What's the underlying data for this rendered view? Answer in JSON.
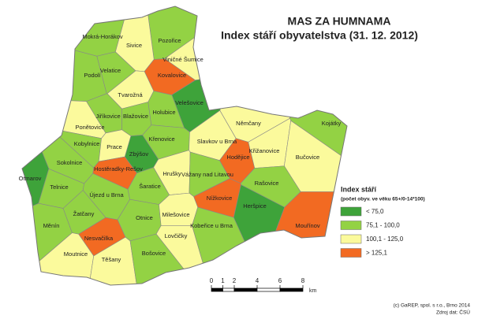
{
  "map": {
    "title": "MAS ZA HUMNAMA",
    "subtitle": "Index stáří obyvatelstva (31. 12. 2012)",
    "legend": {
      "title": "Index stáří",
      "subtitle": "(počet obyv. ve věku 65+/0-14*100)",
      "items": [
        {
          "label": "< 75,0",
          "color": "#3ea33a"
        },
        {
          "label": "75,1 - 100,0",
          "color": "#93d244"
        },
        {
          "label": "100,1 - 125,0",
          "color": "#fbfa9c"
        },
        {
          "label": "> 125,1",
          "color": "#f26a22"
        }
      ]
    },
    "municipalities": [
      {
        "name": "Mokrá-Horákov",
        "color": "#93d244"
      },
      {
        "name": "Pozořice",
        "color": "#93d244"
      },
      {
        "name": "Sivice",
        "color": "#fbfa9c"
      },
      {
        "name": "Viničné Šumice",
        "color": "#fbfa9c"
      },
      {
        "name": "Kovalovice",
        "color": "#f26a22"
      },
      {
        "name": "Podolí",
        "color": "#93d244"
      },
      {
        "name": "Velatice",
        "color": "#93d244"
      },
      {
        "name": "Tvarožná",
        "color": "#fbfa9c"
      },
      {
        "name": "Velešovice",
        "color": "#3ea33a"
      },
      {
        "name": "Jiříkovice",
        "color": "#93d244"
      },
      {
        "name": "Blažovice",
        "color": "#93d244"
      },
      {
        "name": "Holubice",
        "color": "#93d244"
      },
      {
        "name": "Ponětovice",
        "color": "#fbfa9c"
      },
      {
        "name": "Němčany",
        "color": "#fbfa9c"
      },
      {
        "name": "Kojátky",
        "color": "#93d244"
      },
      {
        "name": "Kobylnice",
        "color": "#93d244"
      },
      {
        "name": "Prace",
        "color": "#fbfa9c"
      },
      {
        "name": "Křenovice",
        "color": "#93d244"
      },
      {
        "name": "Slavkov u Brna",
        "color": "#fbfa9c"
      },
      {
        "name": "Zbýšov",
        "color": "#3ea33a"
      },
      {
        "name": "Křižanovice",
        "color": "#fbfa9c"
      },
      {
        "name": "Hodějice",
        "color": "#f26a22"
      },
      {
        "name": "Bučovice",
        "color": "#fbfa9c"
      },
      {
        "name": "Sokolnice",
        "color": "#93d244"
      },
      {
        "name": "Hostěradky-Rešov",
        "color": "#f26a22"
      },
      {
        "name": "Otmarov",
        "color": "#3ea33a"
      },
      {
        "name": "Hrušky",
        "color": "#fbfa9c"
      },
      {
        "name": "Vážany nad Litavou",
        "color": "#93d244"
      },
      {
        "name": "Rašovice",
        "color": "#93d244"
      },
      {
        "name": "Telnice",
        "color": "#93d244"
      },
      {
        "name": "Újezd u Brna",
        "color": "#93d244"
      },
      {
        "name": "Šaratice",
        "color": "#93d244"
      },
      {
        "name": "Nížkovice",
        "color": "#f26a22"
      },
      {
        "name": "Heršpice",
        "color": "#3ea33a"
      },
      {
        "name": "Mouřínov",
        "color": "#f26a22"
      },
      {
        "name": "Žatčany",
        "color": "#93d244"
      },
      {
        "name": "Otnice",
        "color": "#93d244"
      },
      {
        "name": "Milešovice",
        "color": "#fbfa9c"
      },
      {
        "name": "Kobeřice u Brna",
        "color": "#93d244"
      },
      {
        "name": "Měnín",
        "color": "#93d244"
      },
      {
        "name": "Lovčičky",
        "color": "#fbfa9c"
      },
      {
        "name": "Nesvačilka",
        "color": "#f26a22"
      },
      {
        "name": "Moutnice",
        "color": "#fbfa9c"
      },
      {
        "name": "Těšany",
        "color": "#fbfa9c"
      },
      {
        "name": "Bošovice",
        "color": "#93d244"
      }
    ],
    "scale_bar": {
      "ticks": [
        0,
        1,
        2,
        4,
        6,
        8
      ],
      "unit": "km"
    },
    "credits": [
      "(c) GaREP, spol. s r.o., Brno 2014",
      "Zdroj dat: ČSÚ"
    ]
  }
}
